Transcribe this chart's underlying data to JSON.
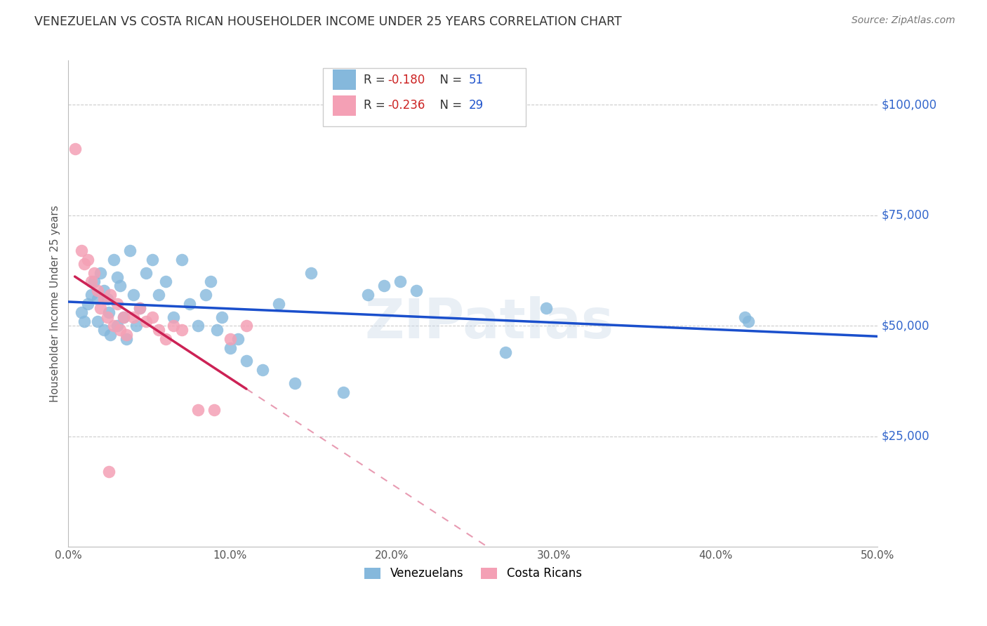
{
  "title": "VENEZUELAN VS COSTA RICAN HOUSEHOLDER INCOME UNDER 25 YEARS CORRELATION CHART",
  "source": "Source: ZipAtlas.com",
  "ylabel": "Householder Income Under 25 years",
  "xlabel_ticks": [
    "0.0%",
    "10.0%",
    "20.0%",
    "30.0%",
    "40.0%",
    "50.0%"
  ],
  "xlabel_vals": [
    0.0,
    0.1,
    0.2,
    0.3,
    0.4,
    0.5
  ],
  "ytick_labels": [
    "$25,000",
    "$50,000",
    "$75,000",
    "$100,000"
  ],
  "ytick_vals": [
    25000,
    50000,
    75000,
    100000
  ],
  "xlim": [
    0.0,
    0.5
  ],
  "ylim": [
    0,
    110000
  ],
  "legend_r_blue": "-0.180",
  "legend_n_blue": "51",
  "legend_r_pink": "-0.236",
  "legend_n_pink": "29",
  "blue_color": "#85B8DC",
  "pink_color": "#F4A0B5",
  "line_blue": "#1A4FCC",
  "line_pink": "#CC2255",
  "watermark": "ZIPatlas",
  "venezuelan_x": [
    0.008,
    0.01,
    0.012,
    0.014,
    0.016,
    0.018,
    0.018,
    0.02,
    0.022,
    0.022,
    0.024,
    0.025,
    0.026,
    0.028,
    0.03,
    0.03,
    0.032,
    0.034,
    0.036,
    0.038,
    0.04,
    0.042,
    0.044,
    0.048,
    0.052,
    0.056,
    0.06,
    0.065,
    0.07,
    0.075,
    0.08,
    0.085,
    0.088,
    0.092,
    0.095,
    0.1,
    0.105,
    0.11,
    0.12,
    0.13,
    0.14,
    0.15,
    0.17,
    0.185,
    0.195,
    0.205,
    0.215,
    0.27,
    0.295,
    0.418,
    0.42
  ],
  "venezuelan_y": [
    53000,
    51000,
    55000,
    57000,
    60000,
    56000,
    51000,
    62000,
    58000,
    49000,
    56000,
    53000,
    48000,
    65000,
    61000,
    50000,
    59000,
    52000,
    47000,
    67000,
    57000,
    50000,
    54000,
    62000,
    65000,
    57000,
    60000,
    52000,
    65000,
    55000,
    50000,
    57000,
    60000,
    49000,
    52000,
    45000,
    47000,
    42000,
    40000,
    55000,
    37000,
    62000,
    35000,
    57000,
    59000,
    60000,
    58000,
    44000,
    54000,
    52000,
    51000
  ],
  "costarican_x": [
    0.004,
    0.008,
    0.01,
    0.012,
    0.014,
    0.016,
    0.018,
    0.02,
    0.022,
    0.024,
    0.026,
    0.028,
    0.03,
    0.032,
    0.034,
    0.036,
    0.04,
    0.044,
    0.048,
    0.052,
    0.056,
    0.06,
    0.065,
    0.07,
    0.08,
    0.09,
    0.1,
    0.11,
    0.025
  ],
  "costarican_y": [
    90000,
    67000,
    64000,
    65000,
    60000,
    62000,
    58000,
    54000,
    56000,
    52000,
    57000,
    50000,
    55000,
    49000,
    52000,
    48000,
    52000,
    54000,
    51000,
    52000,
    49000,
    47000,
    50000,
    49000,
    31000,
    31000,
    47000,
    50000,
    17000
  ]
}
